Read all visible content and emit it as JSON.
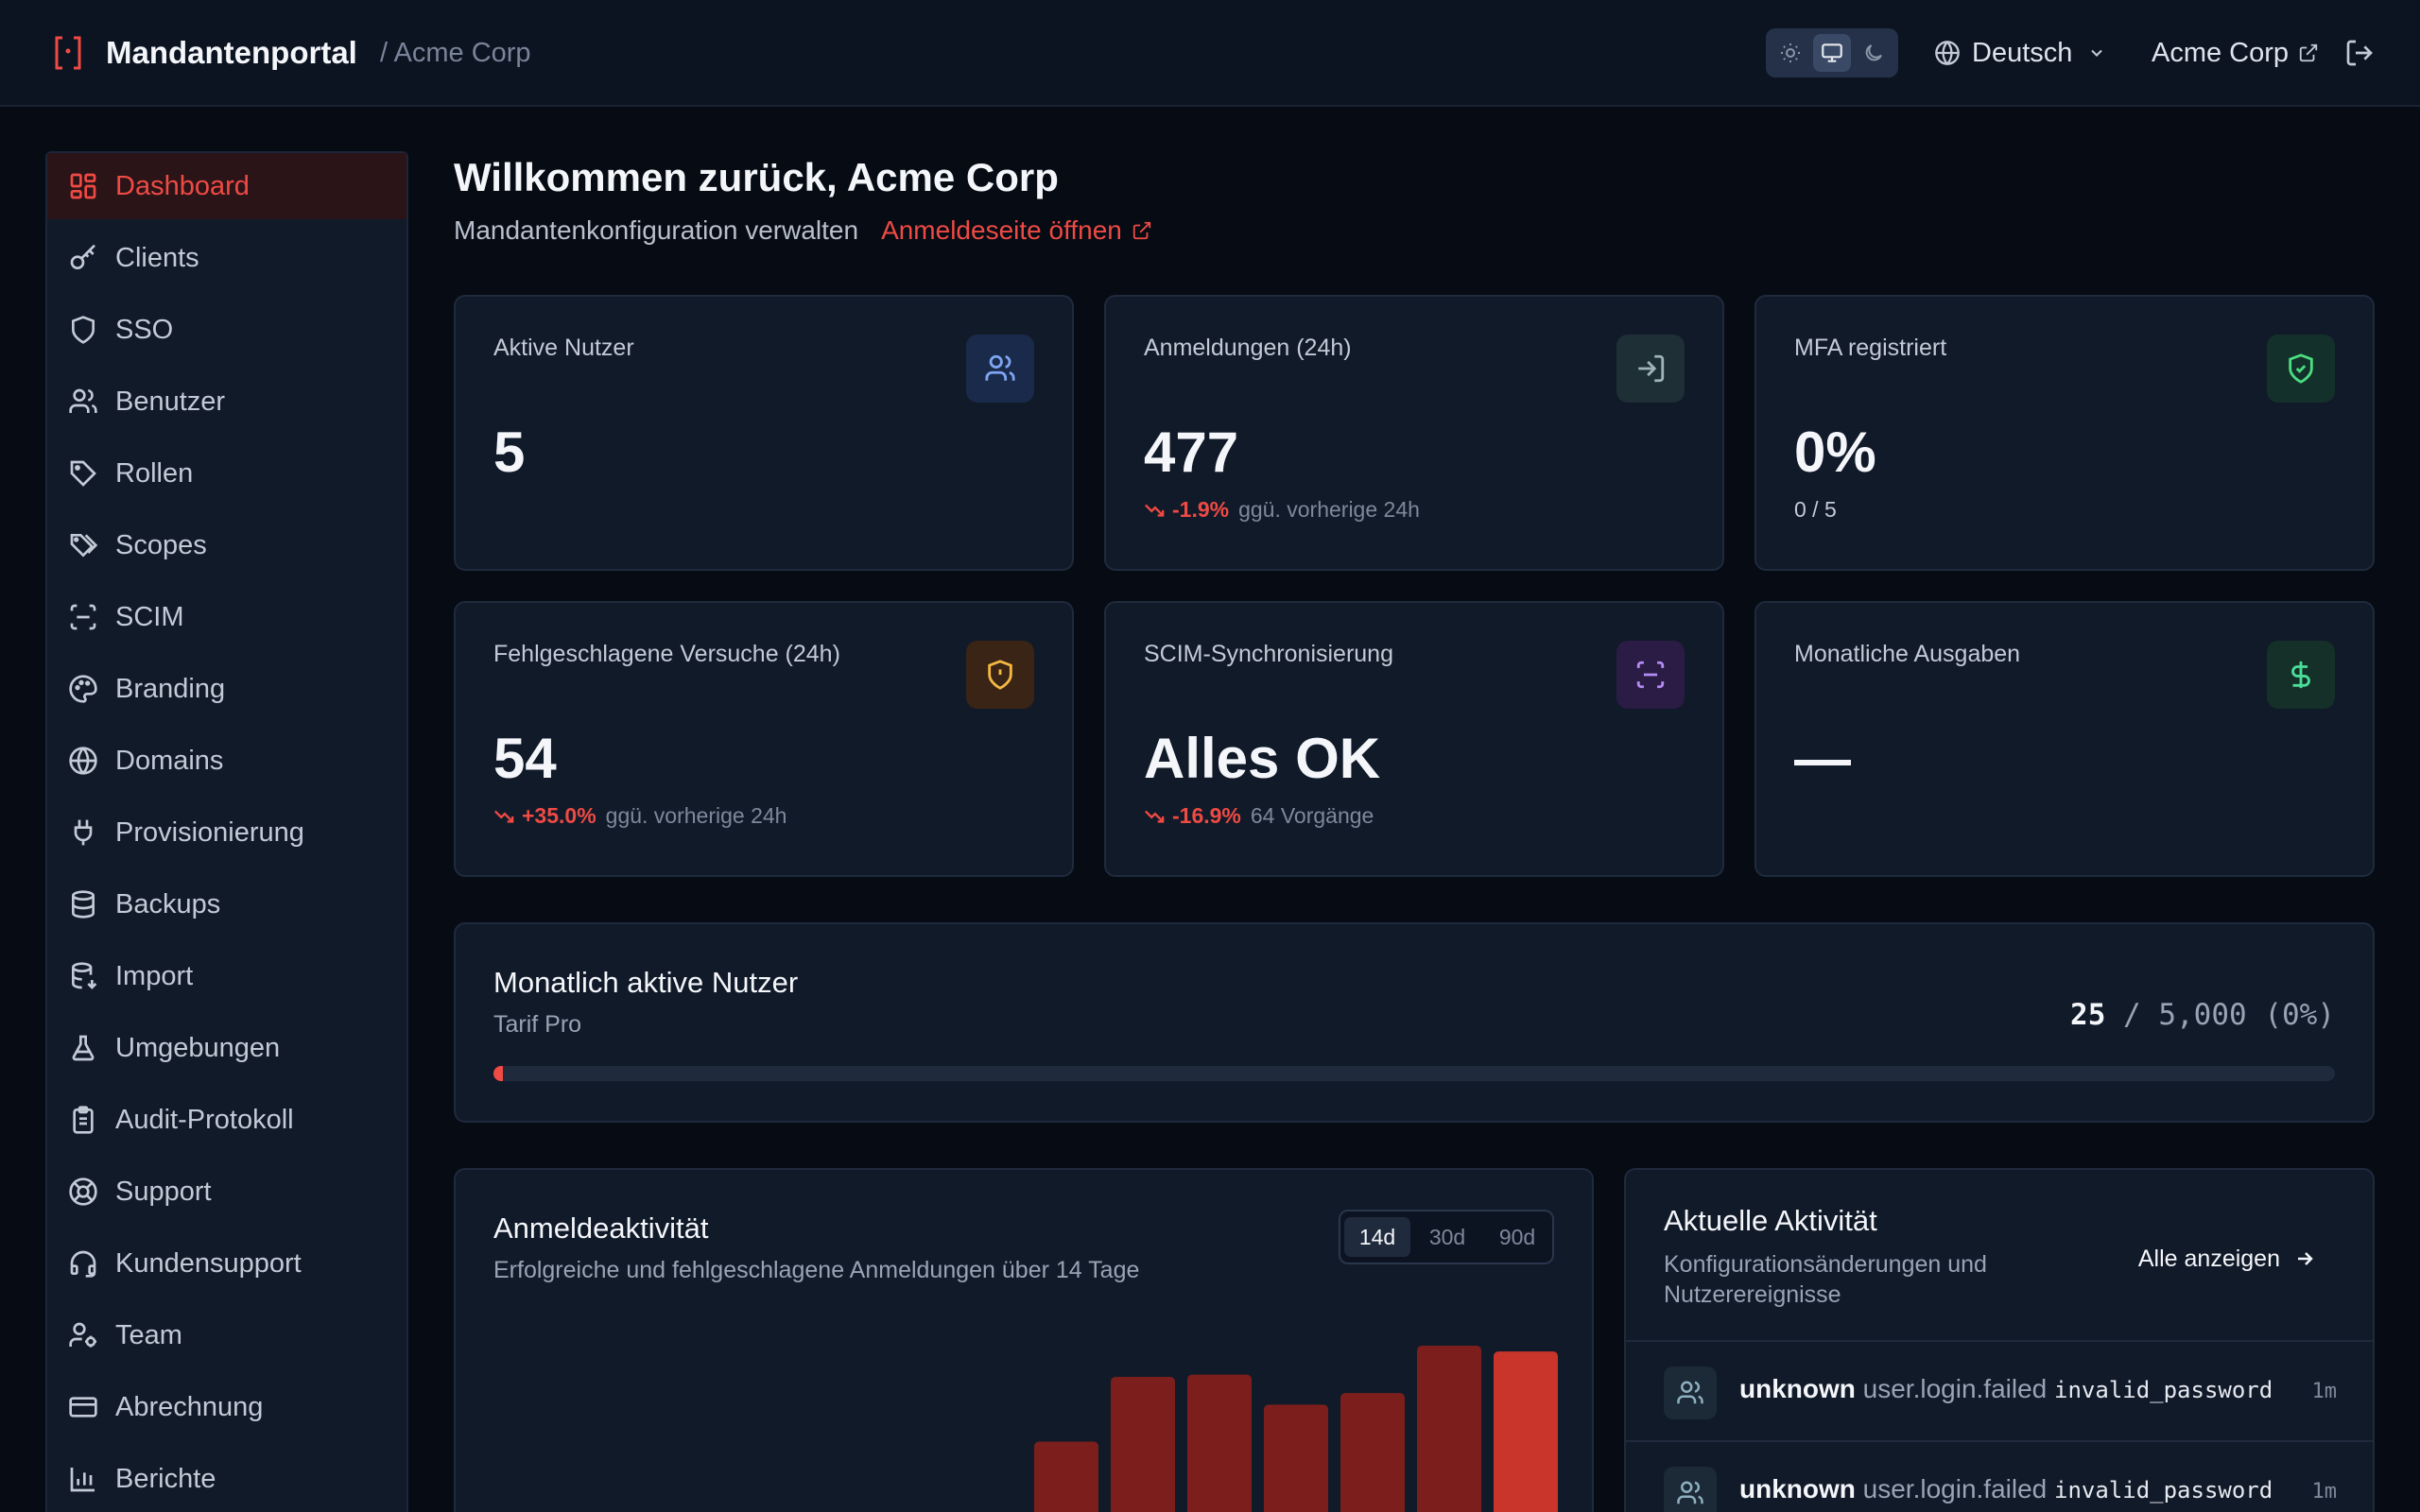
{
  "header": {
    "app_title": "Mandantenportal",
    "breadcrumb": "/ Acme Corp",
    "language": "Deutsch",
    "tenant_link": "Acme Corp",
    "theme_active": "system"
  },
  "sidebar": {
    "active_color": "#ef4a44",
    "items": [
      {
        "label": "Dashboard",
        "icon": "dashboard-icon",
        "active": true
      },
      {
        "label": "Clients",
        "icon": "key-icon"
      },
      {
        "label": "SSO",
        "icon": "shield-icon"
      },
      {
        "label": "Benutzer",
        "icon": "users-icon"
      },
      {
        "label": "Rollen",
        "icon": "tag-icon"
      },
      {
        "label": "Scopes",
        "icon": "tags-icon"
      },
      {
        "label": "SCIM",
        "icon": "scan-icon"
      },
      {
        "label": "Branding",
        "icon": "palette-icon"
      },
      {
        "label": "Domains",
        "icon": "globe-icon"
      },
      {
        "label": "Provisionierung",
        "icon": "plug-icon"
      },
      {
        "label": "Backups",
        "icon": "database-icon"
      },
      {
        "label": "Import",
        "icon": "database-import-icon"
      },
      {
        "label": "Umgebungen",
        "icon": "flask-icon"
      },
      {
        "label": "Audit-Protokoll",
        "icon": "clipboard-icon"
      },
      {
        "label": "Support",
        "icon": "lifebuoy-icon"
      },
      {
        "label": "Kundensupport",
        "icon": "headset-icon"
      },
      {
        "label": "Team",
        "icon": "user-gear-icon"
      },
      {
        "label": "Abrechnung",
        "icon": "credit-card-icon"
      },
      {
        "label": "Berichte",
        "icon": "bar-chart-icon"
      }
    ]
  },
  "main": {
    "welcome": "Willkommen zurück, Acme Corp",
    "subtitle": "Mandantenkonfiguration verwalten",
    "login_page_link": "Anmeldeseite öffnen"
  },
  "stats": [
    {
      "label": "Aktive Nutzer",
      "value": "5",
      "icon": "users-icon",
      "icon_bg": "#1a2a4a",
      "icon_color": "#7ea6f2",
      "delta": "",
      "sub": ""
    },
    {
      "label": "Anmeldungen (24h)",
      "value": "477",
      "icon": "login-icon",
      "icon_bg": "#1e3036",
      "icon_color": "#9fb3b8",
      "delta": "-1.9%",
      "sub": "ggü. vorherige 24h"
    },
    {
      "label": "MFA registriert",
      "value": "0%",
      "icon": "shield-check-icon",
      "icon_bg": "#14302a",
      "icon_color": "#4ade80",
      "delta": "",
      "sub": "0 / 5"
    },
    {
      "label": "Fehlgeschlagene Versuche (24h)",
      "value": "54",
      "icon": "shield-alert-icon",
      "icon_bg": "#3a2416",
      "icon_color": "#f5b942",
      "delta": "+35.0%",
      "sub": "ggü. vorherige 24h"
    },
    {
      "label": "SCIM-Synchronisierung",
      "value": "Alles OK",
      "icon": "scan-icon",
      "icon_bg": "#2a1c44",
      "icon_color": "#b48cf5",
      "delta": "-16.9%",
      "sub": "64 Vorgänge"
    },
    {
      "label": "Monatliche Ausgaben",
      "value": "—",
      "icon": "dollar-icon",
      "icon_bg": "#143028",
      "icon_color": "#4ade9a",
      "delta": "",
      "sub": ""
    }
  ],
  "mau": {
    "title": "Monatlich aktive Nutzer",
    "plan": "Tarif Pro",
    "current": "25",
    "limit_text": "/ 5,000 (0%)",
    "progress_fraction": 0.005
  },
  "chart_card": {
    "title": "Anmeldeaktivität",
    "subtitle": "Erfolgreiche und fehlgeschlagene Anmeldungen über 14 Tage",
    "ranges": [
      "14d",
      "30d",
      "90d"
    ],
    "active_range": "14d"
  },
  "chart_data": {
    "type": "bar",
    "categories_count": 7,
    "values": [
      92,
      148,
      150,
      124,
      134,
      175,
      170
    ],
    "colors": [
      "#7c1f1c",
      "#7c1f1c",
      "#7c1f1c",
      "#7c1f1c",
      "#7c1f1c",
      "#7c1f1c",
      "#c9342b"
    ],
    "grid": false
  },
  "activity": {
    "title": "Aktuelle Aktivität",
    "subtitle": "Konfigurationsänderungen und Nutzerereignisse",
    "view_all": "Alle anzeigen",
    "items": [
      {
        "user": "unknown",
        "event": "user.login.failed",
        "detail": "invalid_password",
        "time": "1m",
        "icon": "users-icon"
      },
      {
        "user": "unknown",
        "event": "user.login.failed",
        "detail": "invalid_password",
        "time": "1m",
        "icon": "users-icon"
      }
    ]
  }
}
